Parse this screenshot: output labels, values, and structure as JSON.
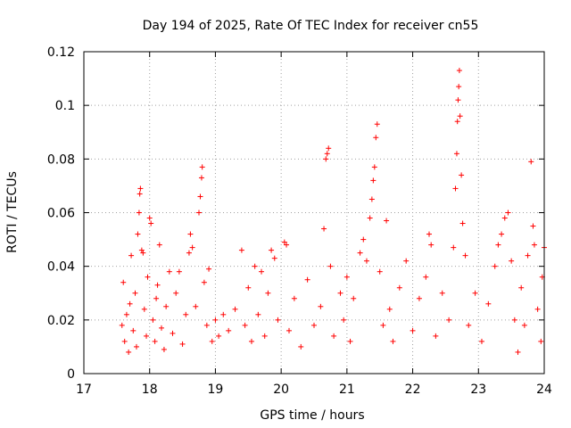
{
  "chart_data": {
    "type": "scatter",
    "title": "Day 194 of 2025, Rate Of TEC Index for receiver cn55",
    "xlabel": "GPS time / hours",
    "ylabel": "ROTI / TECUs",
    "xlim": [
      17,
      24
    ],
    "ylim": [
      0,
      0.12
    ],
    "x_ticks": [
      17,
      18,
      19,
      20,
      21,
      22,
      23,
      24
    ],
    "x_tick_labels": [
      "17",
      "18",
      "19",
      "20",
      "21",
      "22",
      "23",
      "24"
    ],
    "y_ticks": [
      0,
      0.02,
      0.04,
      0.06,
      0.08,
      0.1,
      0.12
    ],
    "y_tick_labels": [
      "0",
      "0.02",
      "0.04",
      "0.06",
      "0.08",
      "0.1",
      "0.12"
    ],
    "grid": true,
    "marker": "plus",
    "color": "#ff0000",
    "series": [
      {
        "name": "ROTI",
        "points": [
          [
            17.58,
            0.018
          ],
          [
            17.6,
            0.034
          ],
          [
            17.62,
            0.012
          ],
          [
            17.65,
            0.022
          ],
          [
            17.68,
            0.008
          ],
          [
            17.7,
            0.026
          ],
          [
            17.72,
            0.044
          ],
          [
            17.75,
            0.016
          ],
          [
            17.78,
            0.03
          ],
          [
            17.8,
            0.01
          ],
          [
            17.82,
            0.052
          ],
          [
            17.84,
            0.06
          ],
          [
            17.85,
            0.067
          ],
          [
            17.86,
            0.069
          ],
          [
            17.88,
            0.046
          ],
          [
            17.9,
            0.045
          ],
          [
            17.92,
            0.024
          ],
          [
            17.95,
            0.014
          ],
          [
            17.97,
            0.036
          ],
          [
            18.0,
            0.058
          ],
          [
            18.02,
            0.056
          ],
          [
            18.05,
            0.02
          ],
          [
            18.08,
            0.012
          ],
          [
            18.1,
            0.028
          ],
          [
            18.12,
            0.033
          ],
          [
            18.15,
            0.048
          ],
          [
            18.18,
            0.017
          ],
          [
            18.22,
            0.009
          ],
          [
            18.25,
            0.025
          ],
          [
            18.3,
            0.038
          ],
          [
            18.35,
            0.015
          ],
          [
            18.4,
            0.03
          ],
          [
            18.45,
            0.038
          ],
          [
            18.5,
            0.011
          ],
          [
            18.55,
            0.022
          ],
          [
            18.6,
            0.045
          ],
          [
            18.62,
            0.052
          ],
          [
            18.65,
            0.047
          ],
          [
            18.7,
            0.025
          ],
          [
            18.75,
            0.06
          ],
          [
            18.77,
            0.066
          ],
          [
            18.79,
            0.073
          ],
          [
            18.8,
            0.077
          ],
          [
            18.83,
            0.034
          ],
          [
            18.87,
            0.018
          ],
          [
            18.9,
            0.039
          ],
          [
            18.95,
            0.012
          ],
          [
            19.0,
            0.02
          ],
          [
            19.05,
            0.014
          ],
          [
            19.12,
            0.022
          ],
          [
            19.2,
            0.016
          ],
          [
            19.3,
            0.024
          ],
          [
            19.4,
            0.046
          ],
          [
            19.45,
            0.018
          ],
          [
            19.5,
            0.032
          ],
          [
            19.55,
            0.012
          ],
          [
            19.6,
            0.04
          ],
          [
            19.65,
            0.022
          ],
          [
            19.7,
            0.038
          ],
          [
            19.75,
            0.014
          ],
          [
            19.8,
            0.03
          ],
          [
            19.85,
            0.046
          ],
          [
            19.9,
            0.043
          ],
          [
            19.95,
            0.02
          ],
          [
            20.05,
            0.049
          ],
          [
            20.08,
            0.048
          ],
          [
            20.12,
            0.016
          ],
          [
            20.2,
            0.028
          ],
          [
            20.3,
            0.01
          ],
          [
            20.4,
            0.035
          ],
          [
            20.5,
            0.018
          ],
          [
            20.6,
            0.025
          ],
          [
            20.65,
            0.054
          ],
          [
            20.68,
            0.08
          ],
          [
            20.7,
            0.082
          ],
          [
            20.72,
            0.084
          ],
          [
            20.75,
            0.04
          ],
          [
            20.8,
            0.014
          ],
          [
            20.9,
            0.03
          ],
          [
            20.95,
            0.02
          ],
          [
            21.0,
            0.036
          ],
          [
            21.05,
            0.012
          ],
          [
            21.1,
            0.028
          ],
          [
            21.2,
            0.045
          ],
          [
            21.25,
            0.05
          ],
          [
            21.3,
            0.042
          ],
          [
            21.35,
            0.058
          ],
          [
            21.38,
            0.065
          ],
          [
            21.4,
            0.072
          ],
          [
            21.42,
            0.077
          ],
          [
            21.44,
            0.088
          ],
          [
            21.46,
            0.093
          ],
          [
            21.5,
            0.038
          ],
          [
            21.55,
            0.018
          ],
          [
            21.6,
            0.057
          ],
          [
            21.65,
            0.024
          ],
          [
            21.7,
            0.012
          ],
          [
            21.8,
            0.032
          ],
          [
            21.9,
            0.042
          ],
          [
            22.0,
            0.016
          ],
          [
            22.1,
            0.028
          ],
          [
            22.2,
            0.036
          ],
          [
            22.25,
            0.052
          ],
          [
            22.28,
            0.048
          ],
          [
            22.35,
            0.014
          ],
          [
            22.45,
            0.03
          ],
          [
            22.55,
            0.02
          ],
          [
            22.62,
            0.047
          ],
          [
            22.65,
            0.069
          ],
          [
            22.67,
            0.082
          ],
          [
            22.68,
            0.094
          ],
          [
            22.69,
            0.102
          ],
          [
            22.7,
            0.107
          ],
          [
            22.71,
            0.113
          ],
          [
            22.72,
            0.096
          ],
          [
            22.74,
            0.074
          ],
          [
            22.76,
            0.056
          ],
          [
            22.8,
            0.044
          ],
          [
            22.85,
            0.018
          ],
          [
            22.95,
            0.03
          ],
          [
            23.05,
            0.012
          ],
          [
            23.15,
            0.026
          ],
          [
            23.25,
            0.04
          ],
          [
            23.3,
            0.048
          ],
          [
            23.35,
            0.052
          ],
          [
            23.4,
            0.058
          ],
          [
            23.45,
            0.06
          ],
          [
            23.5,
            0.042
          ],
          [
            23.55,
            0.02
          ],
          [
            23.6,
            0.008
          ],
          [
            23.65,
            0.032
          ],
          [
            23.7,
            0.018
          ],
          [
            23.75,
            0.044
          ],
          [
            23.8,
            0.079
          ],
          [
            23.83,
            0.055
          ],
          [
            23.85,
            0.048
          ],
          [
            23.9,
            0.024
          ],
          [
            23.95,
            0.012
          ],
          [
            23.97,
            0.036
          ],
          [
            24.0,
            0.047
          ]
        ]
      }
    ]
  }
}
